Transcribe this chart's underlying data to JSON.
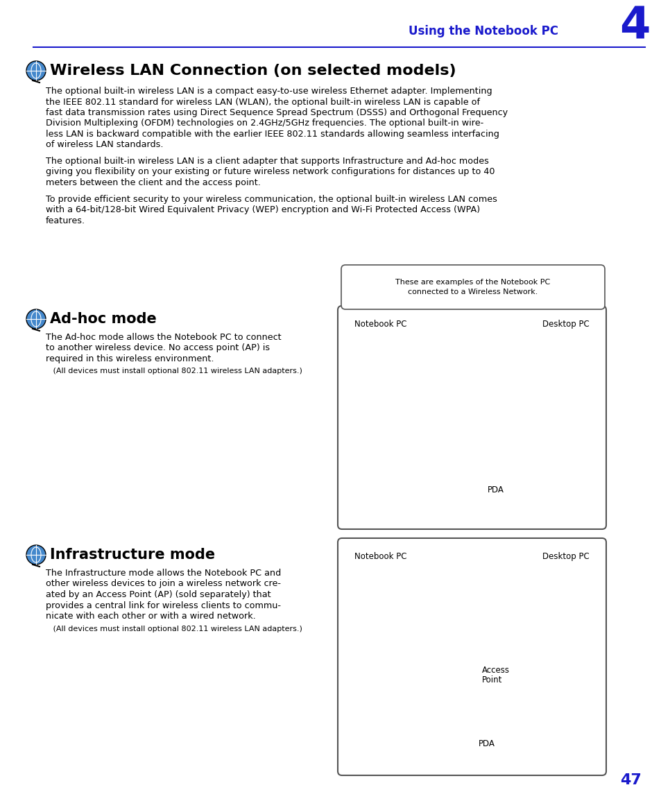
{
  "page_title": "Using the Notebook PC",
  "chapter_num": "4",
  "blue_color": "#1a1acc",
  "section_title": "Wireless LAN Connection (on selected models)",
  "para1_lines": [
    "The optional built-in wireless LAN is a compact easy-to-use wireless Ethernet adapter. Implementing",
    "the IEEE 802.11 standard for wireless LAN (WLAN), the optional built-in wireless LAN is capable of",
    "fast data transmission rates using Direct Sequence Spread Spectrum (DSSS) and Orthogonal Frequency",
    "Division Multiplexing (OFDM) technologies on 2.4GHz/5GHz frequencies. The optional built-in wire-",
    "less LAN is backward compatible with the earlier IEEE 802.11 standards allowing seamless interfacing",
    "of wireless LAN standards."
  ],
  "para2_lines": [
    "The optional built-in wireless LAN is a client adapter that supports Infrastructure and Ad-hoc modes",
    "giving you flexibility on your existing or future wireless network configurations for distances up to 40",
    "meters between the client and the access point."
  ],
  "para3_lines": [
    "To provide efficient security to your wireless communication, the optional built-in wireless LAN comes",
    "with a 64-bit/128-bit Wired Equivalent Privacy (WEP) encryption and Wi-Fi Protected Access (WPA)",
    "features."
  ],
  "callout_text1": "These are examples of the Notebook PC",
  "callout_text2": "connected to a Wireless Network.",
  "adhoc_title": "Ad-hoc mode",
  "adhoc_body": [
    "The Ad-hoc mode allows the Notebook PC to connect",
    "to another wireless device. No access point (AP) is",
    "required in this wireless environment."
  ],
  "adhoc_note": "   (All devices must install optional 802.11 wireless LAN adapters.)",
  "infra_title": "Infrastructure mode",
  "infra_body": [
    "The Infrastructure mode allows the Notebook PC and",
    "other wireless devices to join a wireless network cre-",
    "ated by an Access Point (AP) (sold separately) that",
    "provides a central link for wireless clients to commu-",
    "nicate with each other or with a wired network."
  ],
  "infra_note": "   (All devices must install optional 802.11 wireless LAN adapters.)",
  "page_number": "47",
  "bg_color": "#ffffff",
  "text_color": "#000000",
  "gray_color": "#888888",
  "darkgray": "#555555",
  "lightgray": "#cccccc"
}
